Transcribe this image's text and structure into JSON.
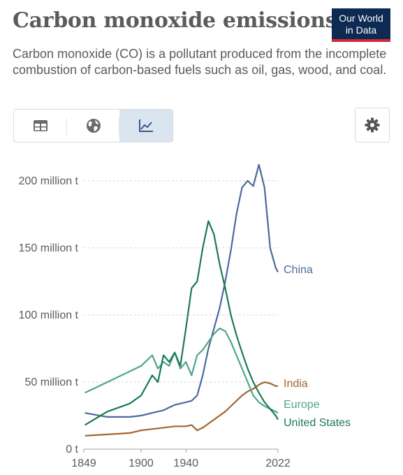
{
  "header": {
    "title": "Carbon monoxide emissions",
    "logo_line1": "Our World",
    "logo_line2": "in Data",
    "subtitle": "Carbon monoxide (CO) is a pollutant produced from the incomplete combustion of carbon-based fuels such as oil, gas, wood, and coal."
  },
  "toolbar": {
    "tabs": [
      {
        "icon": "table-icon",
        "active": false
      },
      {
        "icon": "globe-icon",
        "active": false
      },
      {
        "icon": "line-chart-icon",
        "active": true
      }
    ],
    "settings_icon": "gear-icon"
  },
  "chart_data": {
    "type": "line",
    "ylim": [
      0,
      215
    ],
    "xlim": [
      1849,
      2022
    ],
    "yticks": [
      0,
      50,
      100,
      150,
      200
    ],
    "ytick_labels": [
      "0 t",
      "50 million t",
      "100 million t",
      "150 million t",
      "200 million t"
    ],
    "xticks": [
      1849,
      1900,
      1940,
      2022
    ],
    "xtick_labels": [
      "1849",
      "1900",
      "1940",
      "2022"
    ],
    "grid": true,
    "series": [
      {
        "name": "China",
        "color": "#4c6a9c",
        "x": [
          1850,
          1870,
          1890,
          1900,
          1910,
          1920,
          1930,
          1940,
          1945,
          1950,
          1955,
          1960,
          1965,
          1970,
          1975,
          1980,
          1985,
          1990,
          1995,
          2000,
          2005,
          2010,
          2015,
          2020,
          2022
        ],
        "y": [
          27,
          24,
          24,
          25,
          27,
          29,
          33,
          35,
          36,
          40,
          55,
          75,
          90,
          105,
          125,
          148,
          175,
          195,
          200,
          196,
          212,
          195,
          150,
          135,
          132
        ]
      },
      {
        "name": "India",
        "color": "#a2662e",
        "x": [
          1850,
          1870,
          1890,
          1900,
          1910,
          1920,
          1930,
          1940,
          1945,
          1950,
          1955,
          1960,
          1965,
          1970,
          1975,
          1980,
          1985,
          1990,
          1995,
          2000,
          2005,
          2010,
          2015,
          2020,
          2022
        ],
        "y": [
          10,
          11,
          12,
          14,
          15,
          16,
          17,
          17,
          18,
          14,
          16,
          19,
          22,
          25,
          28,
          32,
          36,
          40,
          43,
          45,
          48,
          50,
          49,
          47,
          47
        ]
      },
      {
        "name": "Europe",
        "color": "#4fa688",
        "x": [
          1850,
          1870,
          1890,
          1900,
          1910,
          1915,
          1920,
          1925,
          1930,
          1935,
          1940,
          1945,
          1950,
          1955,
          1960,
          1965,
          1970,
          1975,
          1980,
          1985,
          1990,
          1995,
          2000,
          2005,
          2010,
          2015,
          2020,
          2022
        ],
        "y": [
          42,
          50,
          58,
          62,
          70,
          60,
          65,
          62,
          72,
          60,
          65,
          55,
          70,
          74,
          80,
          86,
          90,
          88,
          80,
          70,
          60,
          50,
          40,
          35,
          32,
          30,
          28,
          27
        ]
      },
      {
        "name": "United States",
        "color": "#1c7a53",
        "x": [
          1850,
          1870,
          1890,
          1900,
          1910,
          1915,
          1920,
          1925,
          1930,
          1935,
          1940,
          1945,
          1950,
          1955,
          1960,
          1965,
          1970,
          1975,
          1980,
          1985,
          1990,
          1995,
          2000,
          2005,
          2010,
          2015,
          2020,
          2022
        ],
        "y": [
          18,
          28,
          34,
          40,
          55,
          50,
          70,
          65,
          72,
          62,
          90,
          120,
          125,
          150,
          170,
          160,
          138,
          120,
          100,
          85,
          72,
          60,
          50,
          42,
          35,
          30,
          25,
          22
        ]
      }
    ]
  }
}
